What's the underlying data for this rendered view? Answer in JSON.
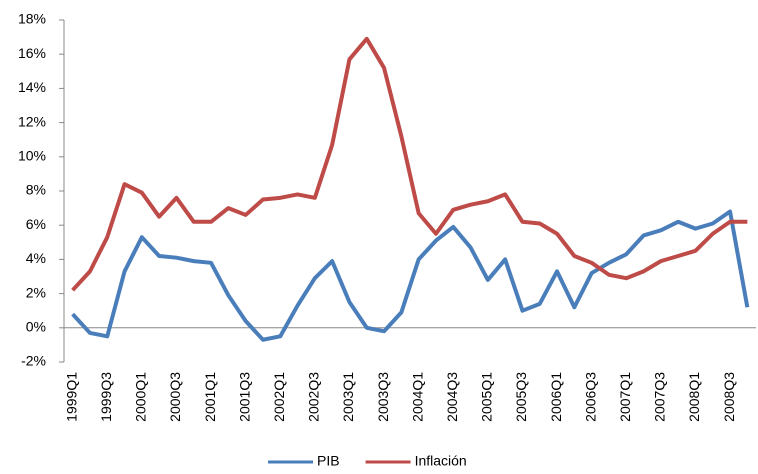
{
  "chart_data": {
    "type": "line",
    "categories": [
      "1999Q1",
      null,
      "1999Q3",
      null,
      "2000Q1",
      null,
      "2000Q3",
      null,
      "2001Q1",
      null,
      "2001Q3",
      null,
      "2002Q1",
      null,
      "2002Q3",
      null,
      "2003Q1",
      null,
      "2003Q3",
      null,
      "2004Q1",
      null,
      "2004Q3",
      null,
      "2005Q1",
      null,
      "2005Q3",
      null,
      "2006Q1",
      null,
      "2006Q3",
      null,
      "2007Q1",
      null,
      "2007Q3",
      null,
      "2008Q1",
      null,
      "2008Q3",
      null
    ],
    "series": [
      {
        "name": "PIB",
        "color": "#4a7ebb",
        "values": [
          0.8,
          -0.3,
          -0.5,
          3.3,
          5.3,
          4.2,
          4.1,
          3.9,
          3.8,
          1.9,
          0.4,
          -0.7,
          -0.5,
          1.3,
          2.9,
          3.9,
          1.5,
          0,
          -0.2,
          0.9,
          4.0,
          5.1,
          5.9,
          4.7,
          2.8,
          4.0,
          1.0,
          1.4,
          3.3,
          1.2,
          3.2,
          3.8,
          4.3,
          5.4,
          5.7,
          6.2,
          5.8,
          6.1,
          6.8,
          1.2
        ]
      },
      {
        "name": "Inflación",
        "color": "#be4b48",
        "values": [
          2.2,
          3.3,
          5.3,
          8.4,
          7.9,
          6.5,
          7.6,
          6.2,
          6.2,
          7.0,
          6.6,
          7.5,
          7.6,
          7.8,
          7.6,
          10.7,
          15.7,
          16.9,
          15.2,
          11.2,
          6.7,
          5.5,
          6.9,
          7.2,
          7.4,
          7.8,
          6.2,
          6.1,
          5.5,
          4.2,
          3.8,
          3.1,
          2.9,
          3.3,
          3.9,
          4.2,
          4.5,
          5.5,
          6.2,
          6.2
        ]
      }
    ],
    "ylim": [
      -2,
      18
    ],
    "yticks": [
      {
        "value": -2,
        "label": "-2%"
      },
      {
        "value": 0,
        "label": "0%"
      },
      {
        "value": 2,
        "label": "2%"
      },
      {
        "value": 4,
        "label": "4%"
      },
      {
        "value": 6,
        "label": "6%"
      },
      {
        "value": 8,
        "label": "8%"
      },
      {
        "value": 10,
        "label": "10%"
      },
      {
        "value": 12,
        "label": "12%"
      },
      {
        "value": 14,
        "label": "14%"
      },
      {
        "value": 16,
        "label": "16%"
      },
      {
        "value": 18,
        "label": "18%"
      }
    ],
    "grid": false,
    "legend": "bottom"
  }
}
